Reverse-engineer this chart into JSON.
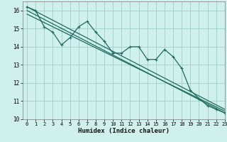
{
  "xlabel": "Humidex (Indice chaleur)",
  "background_color": "#cff0eb",
  "grid_color": "#9ecfc8",
  "line_color": "#1e6b5e",
  "x_data": [
    0,
    1,
    2,
    3,
    4,
    5,
    6,
    7,
    8,
    9,
    10,
    11,
    12,
    13,
    14,
    15,
    16,
    17,
    18,
    19,
    20,
    21,
    22,
    23
  ],
  "y_main": [
    16.2,
    16.0,
    15.1,
    14.8,
    14.1,
    14.5,
    15.1,
    15.4,
    14.8,
    14.3,
    13.65,
    13.65,
    14.0,
    14.0,
    13.3,
    13.3,
    13.85,
    13.45,
    12.8,
    11.6,
    11.15,
    10.75,
    10.55,
    10.35
  ],
  "trend1_x": [
    0,
    23
  ],
  "trend1_y": [
    16.2,
    10.55
  ],
  "trend2_x": [
    0,
    23
  ],
  "trend2_y": [
    16.0,
    10.35
  ],
  "trend3_x": [
    0,
    23
  ],
  "trend3_y": [
    15.8,
    10.45
  ],
  "ylim": [
    10,
    16.5
  ],
  "xlim": [
    -0.5,
    23
  ],
  "yticks": [
    10,
    11,
    12,
    13,
    14,
    15,
    16
  ],
  "xticks": [
    0,
    1,
    2,
    3,
    4,
    5,
    6,
    7,
    8,
    9,
    10,
    11,
    12,
    13,
    14,
    15,
    16,
    17,
    18,
    19,
    20,
    21,
    22,
    23
  ]
}
